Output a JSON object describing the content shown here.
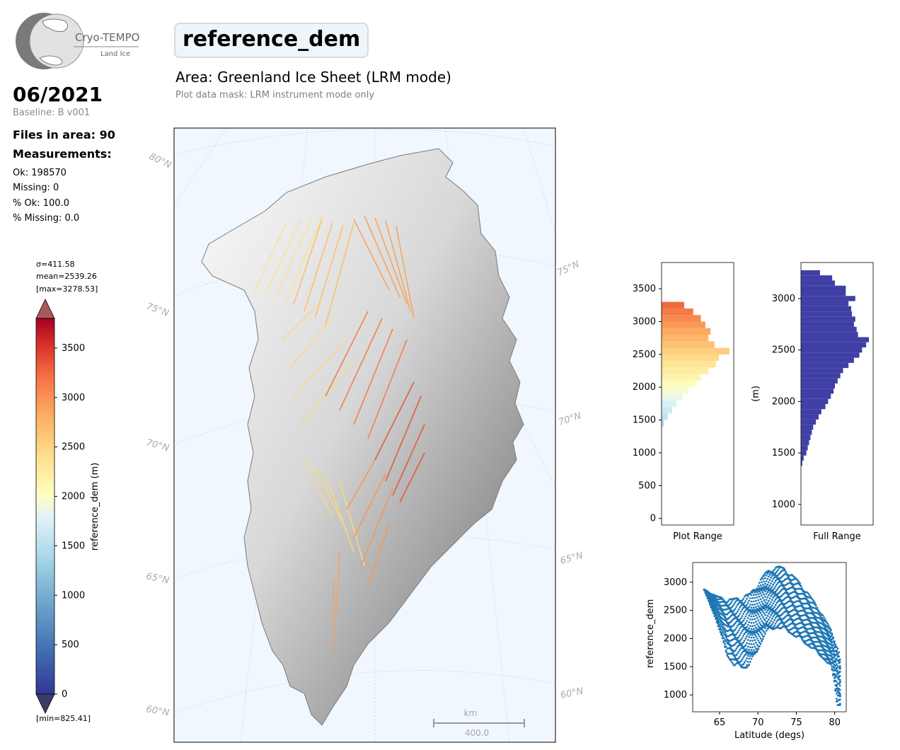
{
  "logo": {
    "name": "Cryo-TEMPO",
    "sub": "Land Ice"
  },
  "header": {
    "title": "reference_dem",
    "area": "Area: Greenland Ice Sheet (LRM mode)",
    "mask": "Plot data mask: LRM instrument mode only"
  },
  "info": {
    "date": "06/2021",
    "baseline": "Baseline: B v001",
    "files": "Files in area: 90",
    "measurements_heading": "Measurements:",
    "ok": "Ok: 198570",
    "missing": "Missing: 0",
    "pct_ok": "% Ok: 100.0",
    "pct_missing": "% Missing: 0.0"
  },
  "colorbar": {
    "sigma": "σ=411.58",
    "mean": "mean=2539.26",
    "max": "[max=3278.53]",
    "min": "[min=825.41]",
    "label": "reference_dem (m)",
    "ticks": [
      "0",
      "500",
      "1000",
      "1500",
      "2000",
      "2500",
      "3000",
      "3500"
    ],
    "tick_values": [
      0,
      500,
      1000,
      1500,
      2000,
      2500,
      3000,
      3500
    ],
    "range": [
      0,
      3800
    ]
  },
  "map": {
    "lat_labels_left": [
      "80°N",
      "75°N",
      "70°N",
      "65°N",
      "60°N"
    ],
    "lat_labels_right": [
      "75°N",
      "70°N",
      "65°N",
      "60°N"
    ],
    "scale_unit": "km",
    "scale_value": "400.0"
  },
  "chart_data": [
    {
      "type": "bar",
      "orientation": "horizontal",
      "title": "",
      "xlabel": "Plot Range",
      "ylabel": "",
      "ylim": [
        -100,
        3900
      ],
      "yticks": [
        0,
        500,
        1000,
        1500,
        2000,
        2500,
        3000,
        3500
      ],
      "bin_centers": [
        1450,
        1550,
        1650,
        1750,
        1850,
        1950,
        2050,
        2150,
        2250,
        2350,
        2450,
        2550,
        2650,
        2750,
        2850,
        2950,
        3050,
        3150,
        3250
      ],
      "counts": [
        3,
        8,
        14,
        20,
        28,
        36,
        45,
        52,
        62,
        72,
        76,
        90,
        70,
        62,
        65,
        58,
        52,
        42,
        30
      ]
    },
    {
      "type": "bar",
      "orientation": "horizontal",
      "title": "",
      "xlabel": "Full Range",
      "ylabel": "(m)",
      "ylim": [
        800,
        3350
      ],
      "yticks": [
        1000,
        1500,
        2000,
        2500,
        3000
      ],
      "bin_centers": [
        1400,
        1450,
        1500,
        1550,
        1600,
        1650,
        1700,
        1750,
        1800,
        1850,
        1900,
        1950,
        2000,
        2050,
        2100,
        2150,
        2200,
        2250,
        2300,
        2350,
        2400,
        2450,
        2500,
        2550,
        2600,
        2650,
        2700,
        2750,
        2800,
        2850,
        2900,
        2950,
        3000,
        3050,
        3100,
        3150,
        3200,
        3250
      ],
      "counts": [
        2,
        4,
        8,
        10,
        12,
        14,
        16,
        18,
        22,
        26,
        30,
        36,
        40,
        44,
        48,
        50,
        54,
        58,
        62,
        70,
        78,
        86,
        90,
        96,
        100,
        84,
        82,
        78,
        80,
        75,
        74,
        70,
        80,
        66,
        66,
        50,
        46,
        28
      ]
    },
    {
      "type": "scatter",
      "title": "",
      "xlabel": "Latitude (degs)",
      "ylabel": "reference_dem",
      "xlim": [
        61.5,
        81.5
      ],
      "ylim": [
        700,
        3350
      ],
      "xticks": [
        65,
        70,
        75,
        80
      ],
      "yticks": [
        1000,
        1500,
        2000,
        2500,
        3000
      ],
      "color": "#1f77b4",
      "envelope_upper": [
        [
          63.0,
          2870
        ],
        [
          64.5,
          2760
        ],
        [
          66.0,
          2690
        ],
        [
          67.5,
          2720
        ],
        [
          69.0,
          2800
        ],
        [
          70.0,
          2980
        ],
        [
          71.0,
          3170
        ],
        [
          72.0,
          3260
        ],
        [
          72.8,
          3280
        ],
        [
          73.5,
          3240
        ],
        [
          75.0,
          3060
        ],
        [
          76.5,
          2810
        ],
        [
          78.0,
          2520
        ],
        [
          79.5,
          2160
        ],
        [
          80.5,
          1800
        ],
        [
          80.9,
          1450
        ]
      ],
      "envelope_lower": [
        [
          63.0,
          2860
        ],
        [
          64.5,
          2350
        ],
        [
          66.0,
          1700
        ],
        [
          67.0,
          1500
        ],
        [
          68.5,
          1480
        ],
        [
          69.5,
          1650
        ],
        [
          71.0,
          2100
        ],
        [
          72.5,
          2200
        ],
        [
          74.0,
          2120
        ],
        [
          75.5,
          1980
        ],
        [
          77.0,
          1830
        ],
        [
          78.5,
          1650
        ],
        [
          79.5,
          1500
        ],
        [
          80.0,
          1200
        ],
        [
          80.3,
          820
        ]
      ]
    }
  ]
}
